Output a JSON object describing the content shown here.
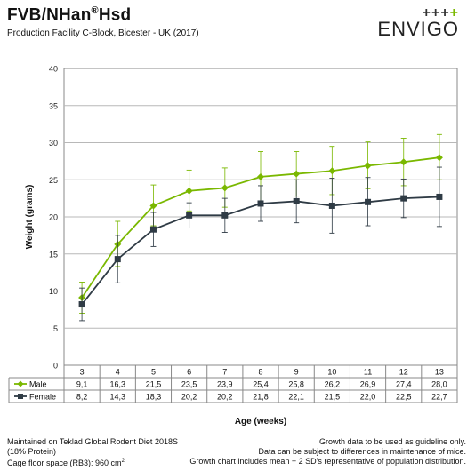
{
  "header": {
    "title_main": "FVB/NHan",
    "title_reg": "®",
    "title_suffix": "Hsd",
    "subtitle": "Production Facility C-Block, Bicester - UK (2017)"
  },
  "logo": {
    "plus_gray": "+++",
    "plus_green": "+",
    "wordmark": "ENVIGO"
  },
  "chart_data": {
    "type": "line",
    "ylabel": "Weight (grams)",
    "xlabel": "Age (weeks)",
    "ylim": [
      0,
      40
    ],
    "yticks": [
      0,
      5,
      10,
      15,
      20,
      25,
      30,
      35,
      40
    ],
    "categories": [
      "3",
      "4",
      "5",
      "6",
      "7",
      "8",
      "9",
      "10",
      "11",
      "12",
      "13"
    ],
    "grid": true,
    "series": [
      {
        "name": "Male",
        "color": "#7ab800",
        "marker": "diamond",
        "values": [
          9.1,
          16.3,
          21.5,
          23.5,
          23.9,
          25.4,
          25.8,
          26.2,
          26.9,
          27.4,
          28.0
        ],
        "labels": [
          "9,1",
          "16,3",
          "21,5",
          "23,5",
          "23,9",
          "25,4",
          "25,8",
          "26,2",
          "26,9",
          "27,4",
          "28,0"
        ],
        "err_low": [
          7.0,
          13.3,
          18.8,
          20.8,
          21.3,
          22.0,
          22.8,
          23.0,
          23.8,
          24.2,
          25.0
        ],
        "err_high": [
          11.2,
          19.4,
          24.3,
          26.3,
          26.6,
          28.8,
          28.8,
          29.5,
          30.1,
          30.6,
          31.1
        ]
      },
      {
        "name": "Female",
        "color": "#2f3b45",
        "marker": "square",
        "values": [
          8.2,
          14.3,
          18.3,
          20.2,
          20.2,
          21.8,
          22.1,
          21.5,
          22.0,
          22.5,
          22.7
        ],
        "labels": [
          "8,2",
          "14,3",
          "18,3",
          "20,2",
          "20,2",
          "21,8",
          "22,1",
          "21,5",
          "22,0",
          "22,5",
          "22,7"
        ],
        "err_low": [
          6.0,
          11.1,
          16.0,
          18.5,
          17.9,
          19.4,
          19.2,
          17.8,
          18.8,
          19.9,
          18.7
        ],
        "err_high": [
          10.4,
          17.5,
          20.6,
          21.9,
          22.5,
          24.2,
          25.0,
          25.2,
          25.3,
          25.1,
          26.7
        ]
      }
    ]
  },
  "footer": {
    "left_line1": "Maintained on Teklad Global Rodent Diet 2018S",
    "left_line2": "(18% Protein)",
    "left_line3": "Cage floor space (RB3): 960 cm",
    "left_line3_sup": "2",
    "right_line1": "Growth data to be used as guideline only.",
    "right_line2": "Data can be subject to differences in maintenance of mice.",
    "right_line3": "Growth chart includes mean + 2 SD's representative of population distribution."
  }
}
